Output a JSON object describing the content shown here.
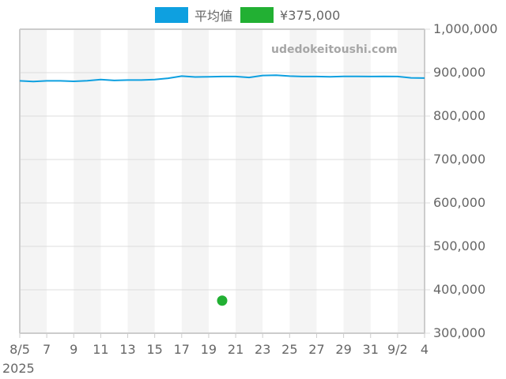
{
  "legend": {
    "series_label": "平均値",
    "series_color": "#0ea0e0",
    "point_label": "¥375,000",
    "point_color": "#22b033"
  },
  "watermark": "udedokeitoushi.com",
  "x_axis": {
    "ticks": [
      "8/5",
      "7",
      "9",
      "11",
      "13",
      "15",
      "17",
      "19",
      "21",
      "23",
      "25",
      "27",
      "29",
      "31",
      "9/2",
      "4"
    ],
    "year_label": "2025"
  },
  "y_axis": {
    "ticks": [
      "1,000,000",
      "900,000",
      "800,000",
      "700,000",
      "600,000",
      "500,000",
      "400,000",
      "300,000"
    ]
  },
  "chart_data": {
    "type": "line",
    "title": "",
    "xlabel": "",
    "ylabel": "",
    "ylim": [
      300000,
      1000000
    ],
    "grid": true,
    "legend_position": "top",
    "x": [
      "2025-08-05",
      "2025-08-06",
      "2025-08-07",
      "2025-08-08",
      "2025-08-09",
      "2025-08-10",
      "2025-08-11",
      "2025-08-12",
      "2025-08-13",
      "2025-08-14",
      "2025-08-15",
      "2025-08-16",
      "2025-08-17",
      "2025-08-18",
      "2025-08-19",
      "2025-08-20",
      "2025-08-21",
      "2025-08-22",
      "2025-08-23",
      "2025-08-24",
      "2025-08-25",
      "2025-08-26",
      "2025-08-27",
      "2025-08-28",
      "2025-08-29",
      "2025-08-30",
      "2025-08-31",
      "2025-09-01",
      "2025-09-02",
      "2025-09-03",
      "2025-09-04"
    ],
    "series": [
      {
        "name": "平均値",
        "type": "line",
        "color": "#0ea0e0",
        "values": [
          881000,
          879500,
          881000,
          881000,
          880000,
          881500,
          884000,
          882000,
          883000,
          883000,
          884000,
          887000,
          892000,
          890000,
          890500,
          891000,
          891000,
          889000,
          893500,
          894000,
          892000,
          891000,
          891000,
          890500,
          891500,
          891500,
          891000,
          891500,
          891000,
          888000,
          887500
        ]
      },
      {
        "name": "¥375,000",
        "type": "scatter",
        "color": "#22b033",
        "points": [
          {
            "x": "2025-08-20",
            "y": 375000
          }
        ]
      }
    ]
  }
}
